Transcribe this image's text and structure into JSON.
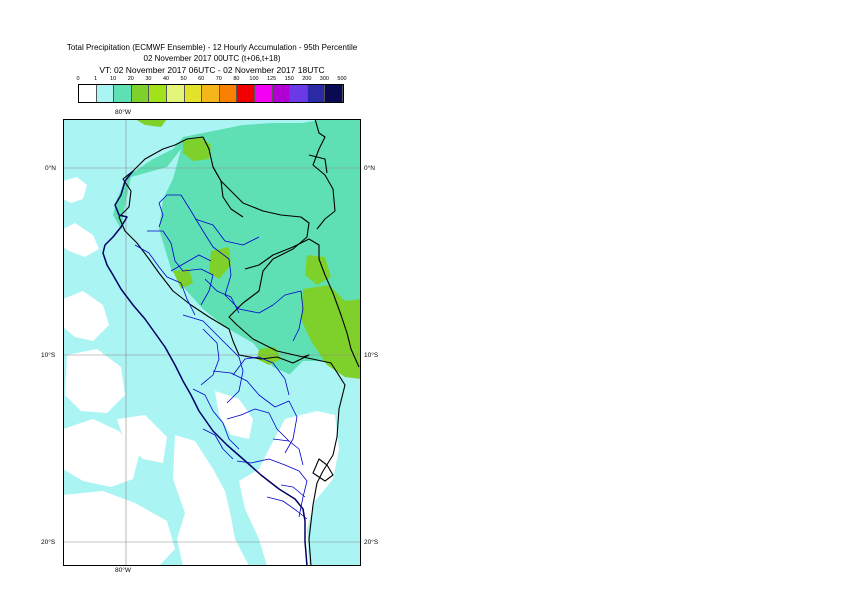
{
  "header": {
    "title": "Total Precipitation (ECMWF Ensemble) - 12 Hourly Accumulation - 95th Percentile",
    "base_time": "02 November 2017 00UTC (t+06,t+18)",
    "valid_time": "VT: 02 November 2017 06UTC - 02 November 2017 18UTC"
  },
  "legend": {
    "labels": [
      "0",
      "1",
      "10",
      "20",
      "30",
      "40",
      "50",
      "60",
      "70",
      "80",
      "100",
      "125",
      "150",
      "200",
      "300",
      "500"
    ],
    "colors": [
      "#ffffff",
      "#aaf4f4",
      "#5fe0b4",
      "#7ed12a",
      "#a2e21a",
      "#e4f67a",
      "#e2e22a",
      "#f4b61a",
      "#fa8002",
      "#f20000",
      "#f400f4",
      "#b200d4",
      "#6a3ae8",
      "#2a2aa6",
      "#0a0a52"
    ]
  },
  "map": {
    "lon_label_top": "80°W",
    "lon_label_bottom": "80°W",
    "lat_labels": [
      "0°N",
      "10°S",
      "20°S"
    ],
    "colors": {
      "ocean": "#aaf4f4",
      "wet_land": "#5fe0b4",
      "heavy": "#7ed12a",
      "dry": "#ffffff",
      "coast": "#000066",
      "border": "#000000",
      "regions": "#0000cc",
      "grid": "#8c8c8c"
    }
  }
}
